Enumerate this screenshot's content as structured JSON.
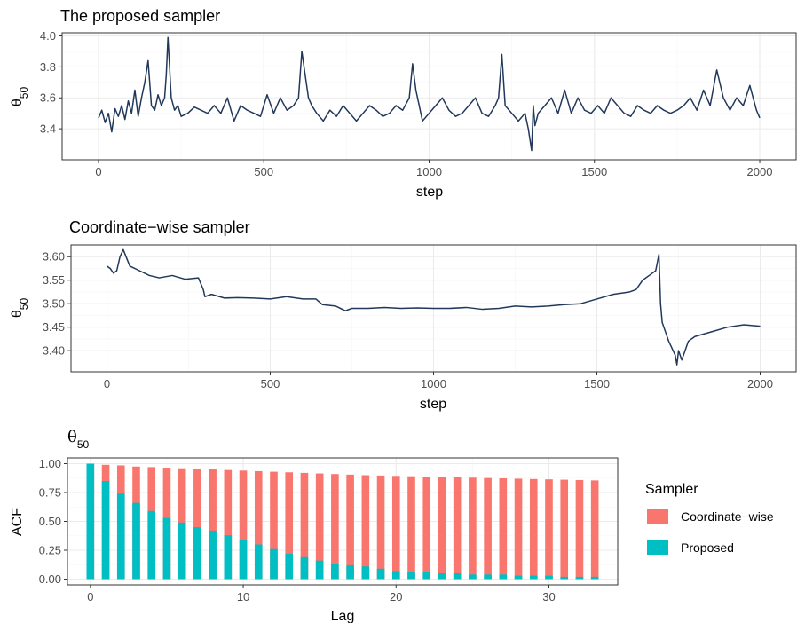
{
  "chart_data": [
    {
      "type": "line",
      "title": "The proposed sampler",
      "xlabel": "step",
      "ylabel": "θ50",
      "ylabel_base": "θ",
      "ylabel_sub": "50",
      "xlim": [
        -110,
        2110
      ],
      "ylim": [
        3.2,
        4.02
      ],
      "x_ticks": [
        0,
        500,
        1000,
        1500,
        2000
      ],
      "x_tick_labels": [
        "0",
        "500",
        "1000",
        "1500",
        "2000"
      ],
      "y_ticks": [
        3.4,
        3.6,
        3.8,
        4.0
      ],
      "y_tick_labels": [
        "3.4",
        "3.6",
        "3.8",
        "4.0"
      ],
      "grid": true,
      "color": "#22385a",
      "series": [
        {
          "x": [
            0,
            10,
            20,
            30,
            40,
            50,
            60,
            70,
            80,
            90,
            100,
            110,
            120,
            130,
            140,
            150,
            160,
            170,
            180,
            190,
            200,
            205,
            210,
            215,
            220,
            230,
            240,
            250,
            270,
            290,
            310,
            330,
            350,
            370,
            390,
            410,
            430,
            450,
            470,
            490,
            510,
            530,
            550,
            570,
            590,
            605,
            615,
            625,
            635,
            645,
            660,
            680,
            700,
            720,
            740,
            760,
            780,
            800,
            820,
            840,
            860,
            880,
            900,
            920,
            940,
            950,
            960,
            970,
            980,
            1000,
            1020,
            1040,
            1060,
            1080,
            1100,
            1120,
            1140,
            1160,
            1180,
            1200,
            1210,
            1220,
            1230,
            1250,
            1270,
            1290,
            1300,
            1310,
            1315,
            1320,
            1330,
            1350,
            1370,
            1390,
            1410,
            1430,
            1450,
            1470,
            1490,
            1510,
            1530,
            1550,
            1570,
            1590,
            1610,
            1630,
            1650,
            1670,
            1690,
            1710,
            1730,
            1750,
            1770,
            1790,
            1810,
            1830,
            1850,
            1870,
            1890,
            1910,
            1930,
            1950,
            1970,
            1990,
            2000
          ],
          "y": [
            3.47,
            3.52,
            3.44,
            3.5,
            3.38,
            3.53,
            3.48,
            3.55,
            3.46,
            3.58,
            3.5,
            3.65,
            3.48,
            3.6,
            3.7,
            3.84,
            3.55,
            3.52,
            3.62,
            3.55,
            3.6,
            3.75,
            3.99,
            3.8,
            3.6,
            3.52,
            3.55,
            3.48,
            3.5,
            3.54,
            3.52,
            3.5,
            3.55,
            3.5,
            3.6,
            3.45,
            3.55,
            3.52,
            3.5,
            3.48,
            3.62,
            3.5,
            3.6,
            3.52,
            3.55,
            3.6,
            3.9,
            3.75,
            3.6,
            3.55,
            3.5,
            3.45,
            3.52,
            3.48,
            3.55,
            3.5,
            3.45,
            3.5,
            3.55,
            3.52,
            3.48,
            3.5,
            3.55,
            3.52,
            3.6,
            3.82,
            3.65,
            3.55,
            3.45,
            3.5,
            3.55,
            3.6,
            3.52,
            3.48,
            3.5,
            3.55,
            3.6,
            3.5,
            3.48,
            3.55,
            3.6,
            3.88,
            3.55,
            3.5,
            3.45,
            3.5,
            3.4,
            3.26,
            3.55,
            3.42,
            3.5,
            3.55,
            3.6,
            3.5,
            3.65,
            3.5,
            3.6,
            3.52,
            3.5,
            3.55,
            3.5,
            3.6,
            3.55,
            3.5,
            3.48,
            3.55,
            3.52,
            3.5,
            3.55,
            3.52,
            3.5,
            3.52,
            3.55,
            3.6,
            3.52,
            3.65,
            3.55,
            3.78,
            3.6,
            3.52,
            3.6,
            3.55,
            3.68,
            3.52,
            3.47
          ]
        }
      ]
    },
    {
      "type": "line",
      "title": "Coordinate−wise sampler",
      "xlabel": "step",
      "ylabel": "θ50",
      "ylabel_base": "θ",
      "ylabel_sub": "50",
      "xlim": [
        -110,
        2110
      ],
      "ylim": [
        3.355,
        3.625
      ],
      "x_ticks": [
        0,
        500,
        1000,
        1500,
        2000
      ],
      "x_tick_labels": [
        "0",
        "500",
        "1000",
        "1500",
        "2000"
      ],
      "y_ticks": [
        3.4,
        3.45,
        3.5,
        3.55,
        3.6
      ],
      "y_tick_labels": [
        "3.40",
        "3.45",
        "3.50",
        "3.55",
        "3.60"
      ],
      "grid": true,
      "color": "#22385a",
      "series": [
        {
          "x": [
            0,
            10,
            20,
            30,
            40,
            50,
            70,
            100,
            130,
            160,
            200,
            240,
            280,
            295,
            300,
            320,
            360,
            400,
            450,
            500,
            550,
            600,
            640,
            660,
            700,
            730,
            750,
            800,
            850,
            900,
            950,
            1000,
            1050,
            1100,
            1150,
            1200,
            1250,
            1300,
            1350,
            1400,
            1450,
            1500,
            1550,
            1600,
            1620,
            1640,
            1660,
            1680,
            1690,
            1695,
            1700,
            1705,
            1720,
            1740,
            1745,
            1750,
            1760,
            1780,
            1800,
            1850,
            1900,
            1950,
            2000
          ],
          "y": [
            3.58,
            3.575,
            3.565,
            3.57,
            3.6,
            3.615,
            3.58,
            3.57,
            3.56,
            3.555,
            3.56,
            3.552,
            3.555,
            3.53,
            3.515,
            3.52,
            3.512,
            3.513,
            3.512,
            3.51,
            3.515,
            3.51,
            3.51,
            3.498,
            3.495,
            3.485,
            3.49,
            3.49,
            3.492,
            3.49,
            3.491,
            3.49,
            3.49,
            3.492,
            3.488,
            3.49,
            3.495,
            3.493,
            3.495,
            3.498,
            3.5,
            3.51,
            3.52,
            3.525,
            3.53,
            3.55,
            3.56,
            3.57,
            3.605,
            3.5,
            3.46,
            3.45,
            3.42,
            3.39,
            3.37,
            3.4,
            3.38,
            3.42,
            3.43,
            3.44,
            3.45,
            3.455,
            3.452
          ]
        }
      ]
    },
    {
      "type": "bar",
      "title": "θ50",
      "title_base": "θ",
      "title_sub": "50",
      "xlabel": "Lag",
      "ylabel": "ACF",
      "xlim": [
        -1.5,
        34.5
      ],
      "ylim": [
        -0.05,
        1.05
      ],
      "x_ticks": [
        0,
        10,
        20,
        30
      ],
      "x_tick_labels": [
        "0",
        "10",
        "20",
        "30"
      ],
      "y_ticks": [
        0,
        0.25,
        0.5,
        0.75,
        1.0
      ],
      "y_tick_labels": [
        "0.00",
        "0.25",
        "0.50",
        "0.75",
        "1.00"
      ],
      "grid": true,
      "legend": {
        "title": "Sampler",
        "placement": "right",
        "entries": [
          "Coordinate−wise",
          "Proposed"
        ]
      },
      "categories": [
        0,
        1,
        2,
        3,
        4,
        5,
        6,
        7,
        8,
        9,
        10,
        11,
        12,
        13,
        14,
        15,
        16,
        17,
        18,
        19,
        20,
        21,
        22,
        23,
        24,
        25,
        26,
        27,
        28,
        29,
        30,
        31,
        32,
        33
      ],
      "series": [
        {
          "name": "Coordinate−wise",
          "color": "#f8766d",
          "values": [
            1.0,
            0.99,
            0.985,
            0.975,
            0.97,
            0.965,
            0.96,
            0.955,
            0.95,
            0.945,
            0.94,
            0.935,
            0.93,
            0.925,
            0.92,
            0.915,
            0.91,
            0.905,
            0.9,
            0.897,
            0.894,
            0.891,
            0.888,
            0.885,
            0.882,
            0.879,
            0.876,
            0.873,
            0.87,
            0.867,
            0.864,
            0.861,
            0.858,
            0.855
          ]
        },
        {
          "name": "Proposed",
          "color": "#00bfc4",
          "values": [
            1.0,
            0.85,
            0.74,
            0.66,
            0.59,
            0.53,
            0.49,
            0.45,
            0.42,
            0.38,
            0.34,
            0.3,
            0.26,
            0.22,
            0.19,
            0.16,
            0.13,
            0.12,
            0.11,
            0.09,
            0.07,
            0.06,
            0.06,
            0.05,
            0.05,
            0.04,
            0.04,
            0.04,
            0.03,
            0.03,
            0.03,
            0.02,
            0.02,
            0.02
          ]
        }
      ]
    }
  ]
}
